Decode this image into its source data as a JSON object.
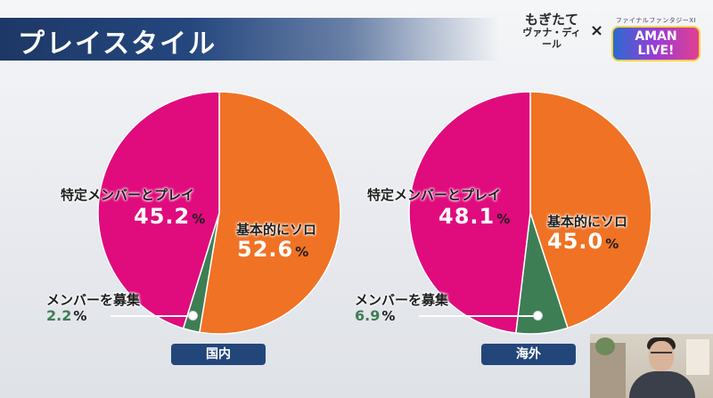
{
  "header": {
    "title": "プレイスタイル"
  },
  "logos": {
    "brand_line1": "もぎたて",
    "brand_line2": "ヴァナ・ディール",
    "cross": "×",
    "partner_small": "ファイナルファンタジーXI",
    "partner_main": "AMAN LIVE!"
  },
  "colors": {
    "magenta": "#e00b7d",
    "orange": "#f07224",
    "green": "#3e7e54",
    "header": "#1d3866",
    "tag": "#23467a"
  },
  "chart_data": [
    {
      "type": "pie",
      "title": "国内",
      "slices": [
        {
          "label": "基本的にソロ",
          "value": 52.6,
          "color": "#f07224",
          "value_text": "52.6"
        },
        {
          "label": "メンバーを募集",
          "value": 2.2,
          "color": "#3e7e54",
          "value_text": "2.2"
        },
        {
          "label": "特定メンバーとプレイ",
          "value": 45.2,
          "color": "#e00b7d",
          "value_text": "45.2"
        }
      ],
      "unit": "%"
    },
    {
      "type": "pie",
      "title": "海外",
      "slices": [
        {
          "label": "基本的にソロ",
          "value": 45.0,
          "color": "#f07224",
          "value_text": "45.0"
        },
        {
          "label": "メンバーを募集",
          "value": 6.9,
          "color": "#3e7e54",
          "value_text": "6.9"
        },
        {
          "label": "特定メンバーとプレイ",
          "value": 48.1,
          "color": "#e00b7d",
          "value_text": "48.1"
        }
      ],
      "unit": "%"
    }
  ]
}
